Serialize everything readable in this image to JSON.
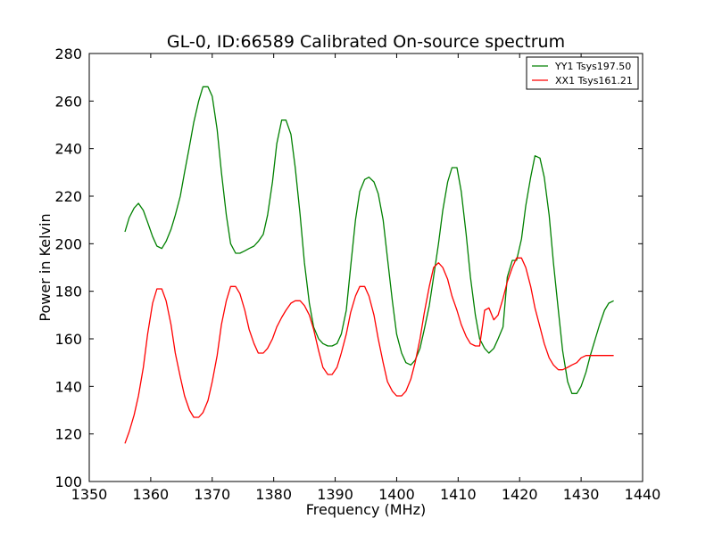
{
  "chart_data": {
    "type": "line",
    "title": "GL-0, ID:66589 Calibrated On-source spectrum",
    "xlabel": "Frequency (MHz)",
    "ylabel": "Power in Kelvin",
    "xlim": [
      1350,
      1440
    ],
    "ylim": [
      100,
      280
    ],
    "xticks": [
      1350,
      1360,
      1370,
      1380,
      1390,
      1400,
      1410,
      1420,
      1430,
      1440
    ],
    "yticks": [
      100,
      120,
      140,
      160,
      180,
      200,
      220,
      240,
      260,
      280
    ],
    "grid": false,
    "legend_position": "top-right",
    "series": [
      {
        "name": "YY1 Tsys197.50",
        "color": "#008000",
        "x": [
          1355.8,
          1356.5,
          1357.3,
          1358.0,
          1358.8,
          1359.5,
          1360.3,
          1361.0,
          1361.8,
          1362.5,
          1363.3,
          1364.0,
          1364.8,
          1365.5,
          1366.3,
          1367.0,
          1367.8,
          1368.5,
          1369.3,
          1370.0,
          1370.8,
          1371.5,
          1372.3,
          1373.0,
          1373.8,
          1374.5,
          1375.3,
          1376.0,
          1376.8,
          1377.5,
          1378.3,
          1379.0,
          1379.8,
          1380.5,
          1381.3,
          1382.0,
          1382.8,
          1383.5,
          1384.3,
          1385.0,
          1385.8,
          1386.5,
          1387.3,
          1388.0,
          1388.8,
          1389.5,
          1390.3,
          1391.0,
          1391.8,
          1392.5,
          1393.3,
          1394.0,
          1394.8,
          1395.5,
          1396.3,
          1397.0,
          1397.8,
          1398.5,
          1399.3,
          1400.0,
          1400.8,
          1401.5,
          1402.3,
          1403.0,
          1403.8,
          1404.5,
          1405.3,
          1406.0,
          1406.8,
          1407.5,
          1408.3,
          1409.0,
          1409.8,
          1410.5,
          1411.3,
          1412.0,
          1412.8,
          1413.5,
          1414.3,
          1415.0,
          1415.8,
          1416.5,
          1417.3,
          1418.0,
          1418.8,
          1419.5,
          1420.3,
          1421.0,
          1421.8,
          1422.5,
          1423.3,
          1424.0,
          1424.8,
          1425.5,
          1426.3,
          1427.0,
          1427.8,
          1428.5,
          1429.3,
          1430.0,
          1430.8,
          1431.5,
          1432.3,
          1433.0,
          1433.8,
          1434.5,
          1435.3
        ],
        "values": [
          205,
          211,
          215,
          217,
          214,
          209,
          203,
          199,
          198,
          201,
          206,
          212,
          220,
          230,
          241,
          251,
          260,
          266,
          266,
          262,
          248,
          230,
          212,
          200,
          196,
          196,
          197,
          198,
          199,
          201,
          204,
          212,
          226,
          242,
          252,
          252,
          246,
          232,
          212,
          192,
          175,
          165,
          160,
          158,
          157,
          157,
          158,
          162,
          172,
          190,
          210,
          222,
          227,
          228,
          226,
          221,
          210,
          194,
          176,
          162,
          154,
          150,
          149,
          151,
          156,
          164,
          174,
          186,
          200,
          214,
          226,
          232,
          232,
          222,
          204,
          186,
          170,
          160,
          156,
          154,
          156,
          160,
          165,
          186,
          193,
          193,
          202,
          216,
          228,
          237,
          236,
          228,
          212,
          192,
          172,
          155,
          142,
          137,
          137,
          140,
          146,
          153,
          160,
          166,
          172,
          175,
          176
        ]
      },
      {
        "name": "XX1 Tsys161.21",
        "color": "#ff0000",
        "x": [
          1355.8,
          1356.5,
          1357.3,
          1358.0,
          1358.8,
          1359.5,
          1360.3,
          1361.0,
          1361.8,
          1362.5,
          1363.3,
          1364.0,
          1364.8,
          1365.5,
          1366.3,
          1367.0,
          1367.8,
          1368.5,
          1369.3,
          1370.0,
          1370.8,
          1371.5,
          1372.3,
          1373.0,
          1373.8,
          1374.5,
          1375.3,
          1376.0,
          1376.8,
          1377.5,
          1378.3,
          1379.0,
          1379.8,
          1380.5,
          1381.3,
          1382.0,
          1382.8,
          1383.5,
          1384.3,
          1385.0,
          1385.8,
          1386.5,
          1387.3,
          1388.0,
          1388.8,
          1389.5,
          1390.3,
          1391.0,
          1391.8,
          1392.5,
          1393.3,
          1394.0,
          1394.8,
          1395.5,
          1396.3,
          1397.0,
          1397.8,
          1398.5,
          1399.3,
          1400.0,
          1400.8,
          1401.5,
          1402.3,
          1403.0,
          1403.8,
          1404.5,
          1405.3,
          1406.0,
          1406.8,
          1407.5,
          1408.3,
          1409.0,
          1409.8,
          1410.5,
          1411.3,
          1412.0,
          1412.8,
          1413.5,
          1414.3,
          1415.0,
          1415.8,
          1416.5,
          1417.3,
          1418.0,
          1418.8,
          1419.5,
          1420.3,
          1421.0,
          1421.8,
          1422.5,
          1423.3,
          1424.0,
          1424.8,
          1425.5,
          1426.3,
          1427.0,
          1427.8,
          1428.5,
          1429.3,
          1430.0,
          1430.8,
          1431.5,
          1432.3,
          1433.0,
          1433.8,
          1434.5,
          1435.3
        ],
        "values": [
          116,
          121,
          128,
          136,
          148,
          162,
          175,
          181,
          181,
          176,
          166,
          154,
          144,
          136,
          130,
          127,
          127,
          129,
          134,
          142,
          153,
          166,
          176,
          182,
          182,
          179,
          172,
          164,
          158,
          154,
          154,
          156,
          160,
          165,
          169,
          172,
          175,
          176,
          176,
          174,
          170,
          164,
          155,
          148,
          145,
          145,
          148,
          154,
          162,
          171,
          178,
          182,
          182,
          178,
          170,
          160,
          150,
          142,
          138,
          136,
          136,
          138,
          143,
          150,
          160,
          171,
          182,
          190,
          192,
          190,
          185,
          178,
          172,
          166,
          161,
          158,
          157,
          157,
          172,
          173,
          168,
          170,
          177,
          184,
          190,
          194,
          194,
          190,
          182,
          173,
          165,
          158,
          152,
          149,
          147,
          147,
          148,
          149,
          150,
          152,
          153,
          153,
          153,
          153,
          153,
          153,
          153
        ]
      }
    ]
  }
}
